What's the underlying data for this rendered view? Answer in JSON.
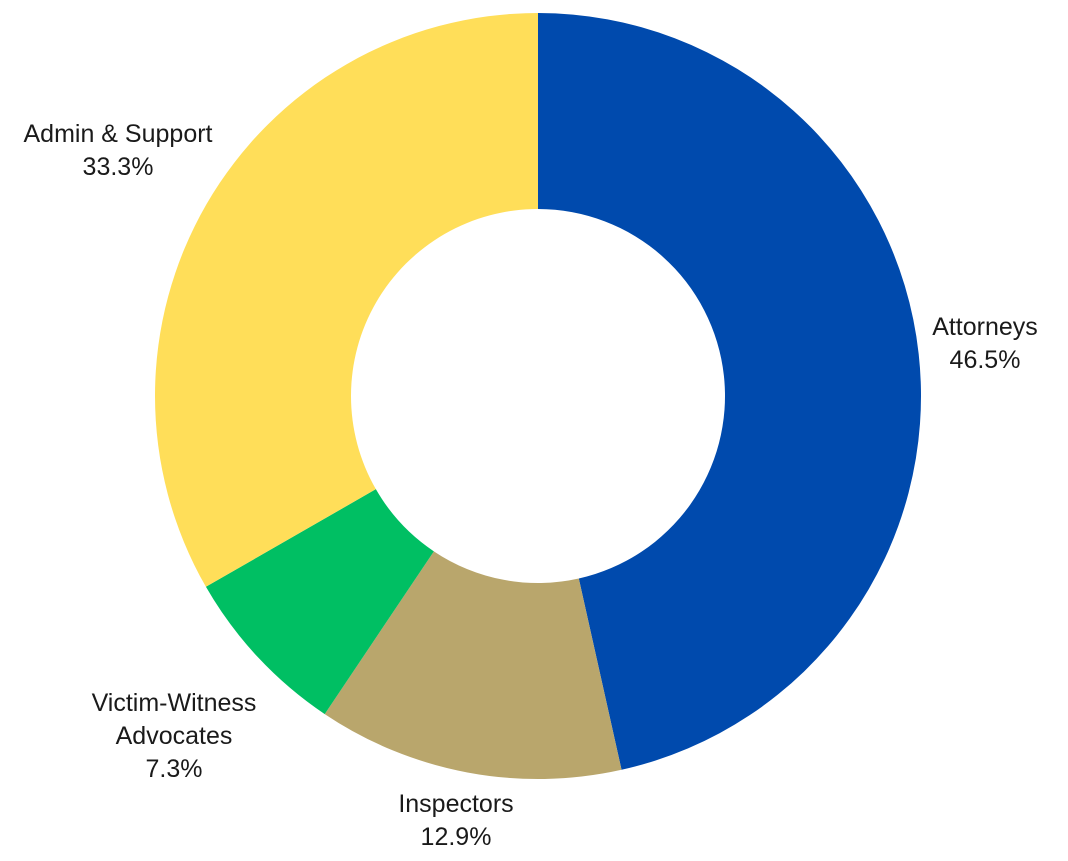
{
  "chart_data": {
    "type": "pie",
    "donut": true,
    "title": "",
    "slices": [
      {
        "label": [
          "Attorneys"
        ],
        "value": 46.5,
        "display": "46.5%",
        "color": "#004AAD"
      },
      {
        "label": [
          "Inspectors"
        ],
        "value": 12.9,
        "display": "12.9%",
        "color": "#B9A66C"
      },
      {
        "label": [
          "Victim-Witness",
          "Advocates"
        ],
        "value": 7.3,
        "display": "7.3%",
        "color": "#00BF63"
      },
      {
        "label": [
          "Admin & Support"
        ],
        "value": 33.3,
        "display": "33.3%",
        "color": "#FFDE59"
      }
    ],
    "start_angle": "12 o'clock",
    "direction": "clockwise",
    "legend": "none"
  }
}
